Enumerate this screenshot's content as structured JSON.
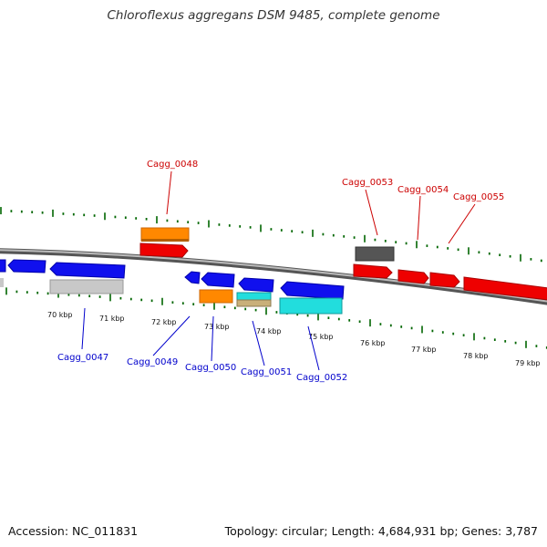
{
  "title": "Chloroflexus aggregans DSM 9485, complete genome",
  "footer": {
    "accession": "Accession: NC_011831",
    "stats": "Topology: circular; Length: 4,684,931 bp; Genes: 3,787"
  },
  "colors": {
    "forward_label": "#cc0000",
    "reverse_label": "#0000cc",
    "tick_marks": "#006600",
    "backbone": "#777777"
  },
  "tick_labels": [
    "70 kbp",
    "71 kbp",
    "72 kbp",
    "73 kbp",
    "74 kbp",
    "75 kbp",
    "76 kbp",
    "77 kbp",
    "78 kbp",
    "79 kbp"
  ],
  "forward_gene_labels": [
    "Cagg_0048",
    "Cagg_0053",
    "Cagg_0054",
    "Cagg_0055"
  ],
  "reverse_gene_labels": [
    "Cagg_0047",
    "Cagg_0049",
    "Cagg_0050",
    "Cagg_0051",
    "Cagg_0052"
  ]
}
